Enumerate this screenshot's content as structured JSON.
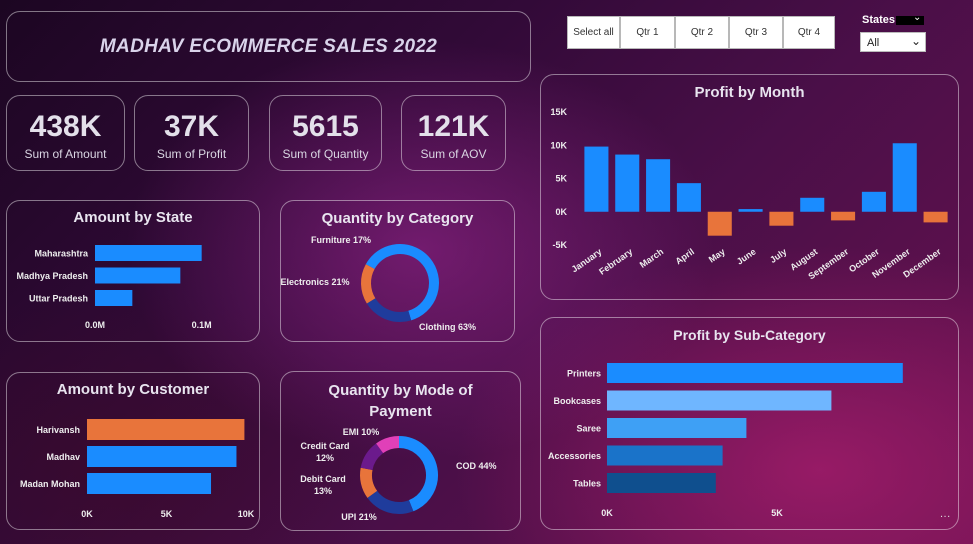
{
  "header": {
    "title": "MADHAV ECOMMERCE SALES 2022"
  },
  "kpis": [
    {
      "value": "438K",
      "label": "Sum of Amount"
    },
    {
      "value": "37K",
      "label": "Sum of Profit"
    },
    {
      "value": "5615",
      "label": "Sum of Quantity"
    },
    {
      "value": "121K",
      "label": "Sum of AOV"
    }
  ],
  "filters": {
    "quarters": [
      "Select all",
      "Qtr 1",
      "Qtr 2",
      "Qtr 3",
      "Qtr 4"
    ],
    "states_label": "States",
    "states_value": "All"
  },
  "colors": {
    "blue": "#1a8cff",
    "orange": "#e8743b",
    "navy": "#1f3c9c",
    "card_border": "#b9a9c4"
  },
  "chart_data": [
    {
      "id": "amount_by_state",
      "type": "bar",
      "orientation": "horizontal",
      "title": "Amount by State",
      "categories": [
        "Maharashtra",
        "Madhya Pradesh",
        "Uttar Pradesh"
      ],
      "values": [
        0.1,
        0.08,
        0.035
      ],
      "xticks": [
        "0.0M",
        "0.1M"
      ],
      "xlim": [
        0,
        0.15
      ]
    },
    {
      "id": "quantity_by_category",
      "type": "pie",
      "style": "donut",
      "title": "Quantity by Category",
      "labels": [
        "Clothing",
        "Electronics",
        "Furniture"
      ],
      "values": [
        63,
        21,
        17
      ],
      "display": [
        "Clothing 63%",
        "Electronics 21%",
        "Furniture 17%"
      ],
      "colors": [
        "#1a8cff",
        "#1f3c9c",
        "#e8743b"
      ]
    },
    {
      "id": "profit_by_month",
      "type": "bar",
      "title": "Profit by Month",
      "categories": [
        "January",
        "February",
        "March",
        "April",
        "May",
        "June",
        "July",
        "August",
        "September",
        "October",
        "November",
        "December"
      ],
      "values": [
        9800,
        8600,
        7900,
        4300,
        -3600,
        400,
        -2100,
        2100,
        -1300,
        3000,
        10300,
        -1600
      ],
      "yticks": [
        "15K",
        "10K",
        "5K",
        "0K",
        "-5K"
      ],
      "ylim": [
        -5000,
        15000
      ]
    },
    {
      "id": "amount_by_customer",
      "type": "bar",
      "orientation": "horizontal",
      "title": "Amount by Customer",
      "categories": [
        "Harivansh",
        "Madhav",
        "Madan Mohan"
      ],
      "values": [
        9900,
        9400,
        7800
      ],
      "xticks": [
        "0K",
        "5K",
        "10K"
      ],
      "xlim": [
        0,
        10000
      ]
    },
    {
      "id": "quantity_by_payment",
      "type": "pie",
      "style": "donut",
      "title": "Quantity by Mode of Payment",
      "labels": [
        "COD",
        "UPI",
        "Debit Card",
        "Credit Card",
        "EMI"
      ],
      "values": [
        44,
        21,
        13,
        12,
        10
      ],
      "display": [
        "COD 44%",
        "UPI 21%",
        "Debit Card\n13%",
        "Credit Card\n12%",
        "EMI 10%"
      ],
      "colors": [
        "#1a8cff",
        "#1f3c9c",
        "#e8743b",
        "#6b1a8c",
        "#e040b8"
      ]
    },
    {
      "id": "profit_by_subcategory",
      "type": "bar",
      "orientation": "horizontal",
      "title": "Profit by Sub-Category",
      "categories": [
        "Printers",
        "Bookcases",
        "Saree",
        "Accessories",
        "Tables"
      ],
      "values": [
        8700,
        6600,
        4100,
        3400,
        3200
      ],
      "xticks": [
        "0K",
        "5K"
      ],
      "xlim": [
        0,
        10000
      ],
      "colors": [
        "#1a8cff",
        "#6fb6ff",
        "#3ea0f5",
        "#1a73c9",
        "#0f4f8e"
      ]
    }
  ]
}
